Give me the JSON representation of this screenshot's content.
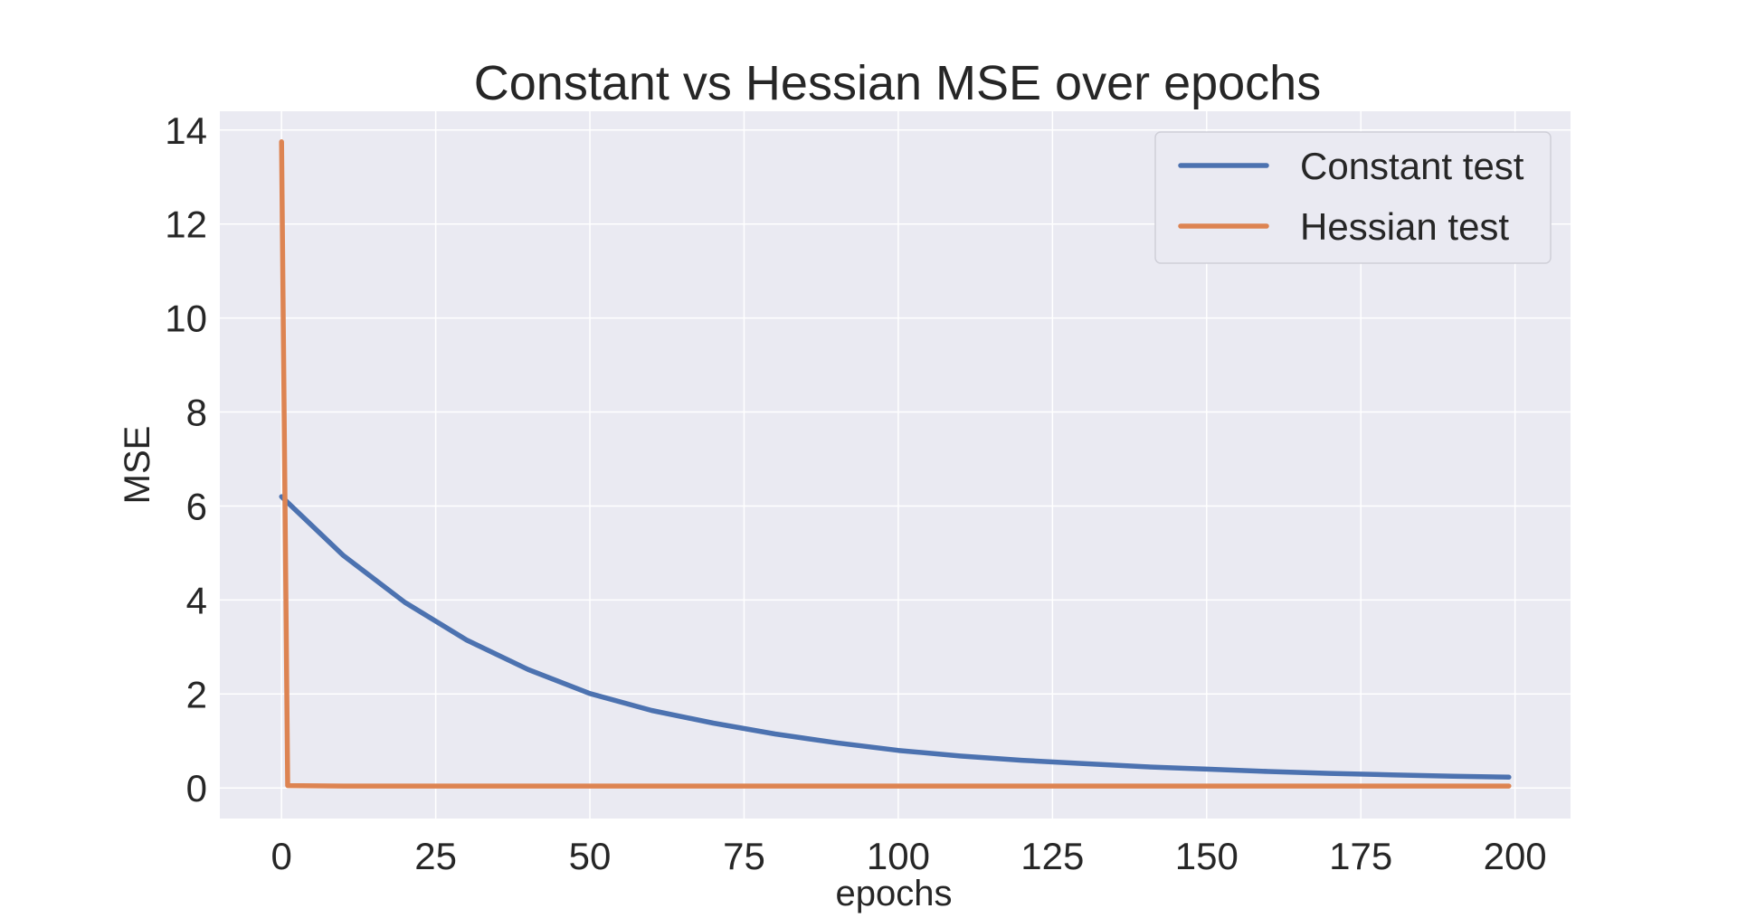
{
  "chart_data": {
    "type": "line",
    "title": "Constant vs Hessian MSE over epochs",
    "xlabel": "epochs",
    "ylabel": "MSE",
    "xlim": [
      -10,
      209
    ],
    "ylim": [
      -0.65,
      14.4
    ],
    "xticks": [
      0,
      25,
      50,
      75,
      100,
      125,
      150,
      175,
      200
    ],
    "yticks": [
      0,
      2,
      4,
      6,
      8,
      10,
      12,
      14
    ],
    "grid": true,
    "legend": "top-right",
    "background": "#eaeaf2",
    "gridColor": "#ffffff",
    "series": [
      {
        "name": "Constant test",
        "color": "#4c72b0",
        "x": [
          0,
          10,
          20,
          30,
          40,
          50,
          60,
          70,
          80,
          90,
          100,
          110,
          120,
          130,
          140,
          150,
          160,
          170,
          180,
          190,
          199
        ],
        "y": [
          6.2,
          4.95,
          3.95,
          3.15,
          2.52,
          2.01,
          1.65,
          1.38,
          1.15,
          0.96,
          0.8,
          0.68,
          0.59,
          0.52,
          0.45,
          0.4,
          0.35,
          0.31,
          0.28,
          0.25,
          0.23
        ]
      },
      {
        "name": "Hessian test",
        "color": "#dd8452",
        "x": [
          0,
          1,
          10,
          50,
          100,
          150,
          199
        ],
        "y": [
          13.75,
          0.05,
          0.04,
          0.04,
          0.04,
          0.04,
          0.04
        ]
      }
    ]
  }
}
